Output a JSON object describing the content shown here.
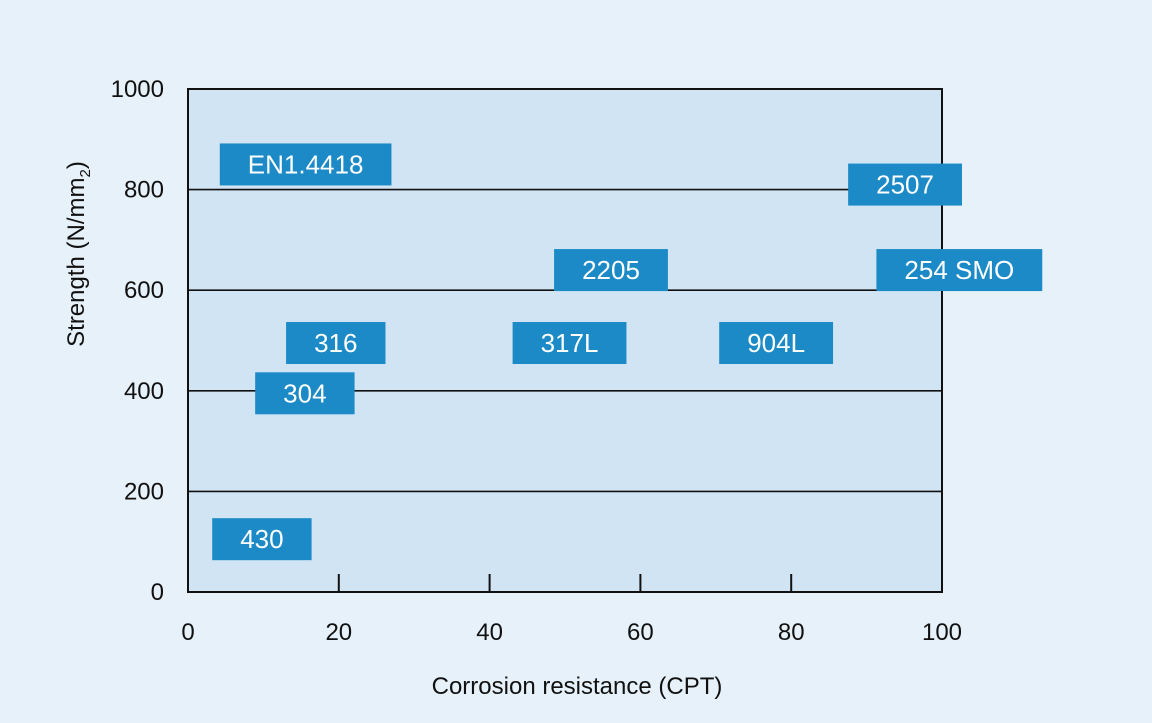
{
  "chart_data": {
    "type": "scatter",
    "title": "",
    "xlabel": "Corrosion resistance (CPT)",
    "ylabel": "Strength (N/mm",
    "ylabel_sub": "2",
    "ylabel_close": ")",
    "xlim": [
      0,
      100
    ],
    "ylim": [
      0,
      1000
    ],
    "x_ticks": [
      0,
      20,
      40,
      60,
      80,
      100
    ],
    "y_ticks": [
      0,
      200,
      400,
      600,
      800,
      1000
    ],
    "grid": "horizontal",
    "points": [
      {
        "label": "EN1.4418",
        "x": 15.6,
        "y": 850
      },
      {
        "label": "2507",
        "x": 95.1,
        "y": 810
      },
      {
        "label": "2205",
        "x": 56.1,
        "y": 640
      },
      {
        "label": "254 SMO",
        "x": 102.3,
        "y": 640
      },
      {
        "label": "316",
        "x": 19.6,
        "y": 495
      },
      {
        "label": "317L",
        "x": 50.6,
        "y": 495
      },
      {
        "label": "904L",
        "x": 78.0,
        "y": 495
      },
      {
        "label": "304",
        "x": 15.5,
        "y": 395
      },
      {
        "label": "430",
        "x": 9.8,
        "y": 105
      }
    ],
    "colors": {
      "page_background": "#e7f1fa",
      "plot_background": "#d1e4f3",
      "box_fill": "#1b8ac6",
      "box_text": "#ffffff",
      "axis": "#111111"
    }
  }
}
